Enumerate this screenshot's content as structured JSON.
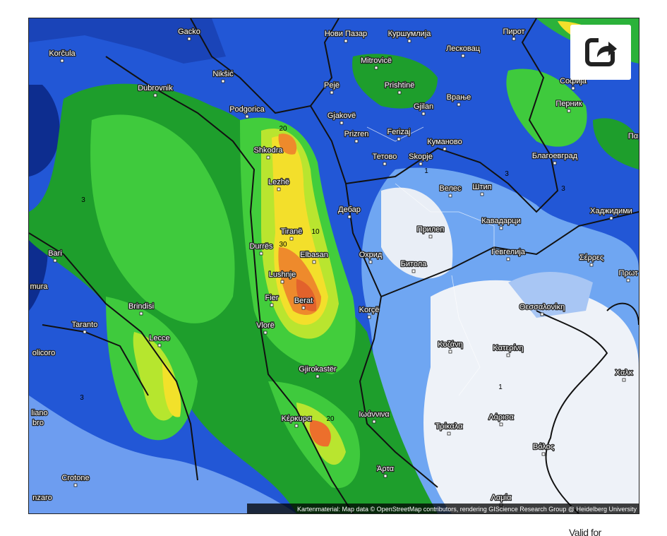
{
  "map": {
    "labels": [
      "Gacko",
      "Korčula",
      "Nikšić",
      "Dubrovnik",
      "Podgorica",
      "Shkodra",
      "Lezhë",
      "Tiranë",
      "Durrës",
      "Elbasan",
      "Lushnje",
      "Fier",
      "Berat",
      "Vlorë",
      "Gjirokastër",
      "Korçë",
      "Bari",
      "Brindisi",
      "Taranto",
      "Lecce",
      "Crotone",
      "Pejë",
      "Gjakovë",
      "Prizren",
      "Prishtinë",
      "Mitrovicë",
      "Нови Пазар",
      "Куршумлија",
      "Пирот",
      "Лесковац",
      "Врање",
      "Gjilan",
      "Ferizaj",
      "Куманово",
      "Тетово",
      "Skopje",
      "Велес",
      "Штип",
      "Дебар",
      "Прилеп",
      "Кавадарци",
      "Охрид",
      "Битола",
      "Гевгелија",
      "Благоевград",
      "Перник",
      "Софија",
      "Хаджидими",
      "Σέρρες",
      "Πρωτ",
      "Θεσσαλονίκη",
      "Κοζάνη",
      "Κατερίνη",
      "Χαλκ",
      "Κέρκυρα",
      "Ιωάννινα",
      "Λάρισα",
      "Τρίκαλα",
      "Βόλος",
      "Άρτα",
      "Λαμία",
      "mura",
      "olicoro",
      "liano",
      "bro",
      "nzaro",
      "Πα"
    ],
    "contour_labels": [
      "20",
      "10",
      "30",
      "20",
      "3",
      "3",
      "3",
      "3",
      "1",
      "1"
    ],
    "attribution": "Kartenmaterial: Map data © OpenStreetMap contributors, rendering GIScience Research Group @ Heidelberg University"
  },
  "footer": {
    "valid_for": "Valid for"
  }
}
